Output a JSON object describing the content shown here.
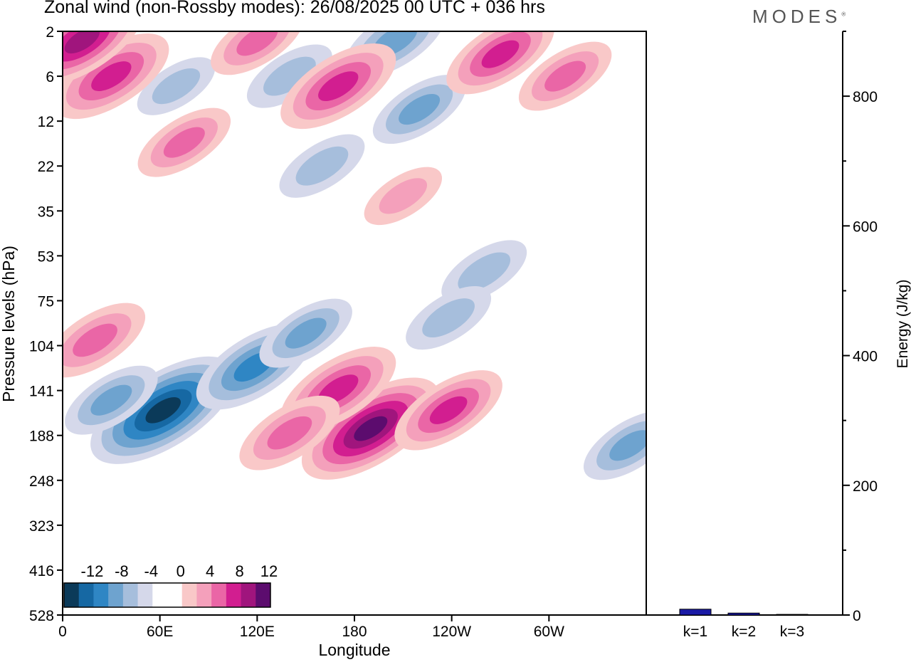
{
  "header": {
    "title": "Zonal wind (non-Rossby modes):  26/08/2025  00 UTC  + 036 hrs",
    "logo": "MODES"
  },
  "chart_data": [
    {
      "type": "heatmap",
      "title": "Zonal wind (non-Rossby modes)",
      "xlabel": "Longitude",
      "ylabel": "Pressure levels (hPa)",
      "x_ticks": [
        "0",
        "60E",
        "120E",
        "180",
        "120W",
        "60W"
      ],
      "y_ticks": [
        "2",
        "6",
        "12",
        "22",
        "35",
        "53",
        "75",
        "104",
        "141",
        "188",
        "248",
        "323",
        "416",
        "528"
      ],
      "colorbar": {
        "labels": [
          "-12",
          "-8",
          "-4",
          "0",
          "4",
          "8",
          "12"
        ],
        "levels": [
          -14,
          -12,
          -10,
          -8,
          -6,
          -4,
          -2,
          0,
          2,
          4,
          6,
          8,
          10,
          12,
          14
        ],
        "colors": [
          "#0b3a59",
          "#1668a3",
          "#2f86c4",
          "#6ea3cf",
          "#a6bedc",
          "#d5d8ea",
          "#ffffff",
          "#ffffff",
          "#f9c8c8",
          "#f4a0bb",
          "#ea66a6",
          "#d21e90",
          "#a0157d",
          "#5c0c6e"
        ]
      },
      "features": [
        {
          "kind": "negative",
          "lon": 62,
          "level": 160,
          "value": -13
        },
        {
          "kind": "negative",
          "lon": 30,
          "level": 150,
          "value": -6
        },
        {
          "kind": "negative",
          "lon": 118,
          "level": 120,
          "value": -9
        },
        {
          "kind": "negative",
          "lon": 150,
          "level": 95,
          "value": -6
        },
        {
          "kind": "negative",
          "lon": 260,
          "level": 60,
          "value": -5
        },
        {
          "kind": "negative",
          "lon": 238,
          "level": 85,
          "value": -5
        },
        {
          "kind": "negative",
          "lon": 350,
          "level": 200,
          "value": -6
        },
        {
          "kind": "negative",
          "lon": 220,
          "level": 10,
          "value": -6
        },
        {
          "kind": "negative",
          "lon": 205,
          "level": 2.5,
          "value": -7
        },
        {
          "kind": "negative",
          "lon": 70,
          "level": 7,
          "value": -4
        },
        {
          "kind": "negative",
          "lon": 140,
          "level": 6,
          "value": -5
        },
        {
          "kind": "negative",
          "lon": 160,
          "level": 22,
          "value": -5
        },
        {
          "kind": "positive",
          "lon": 190,
          "level": 180,
          "value": 12
        },
        {
          "kind": "positive",
          "lon": 170,
          "level": 140,
          "value": 9
        },
        {
          "kind": "positive",
          "lon": 140,
          "level": 185,
          "value": 7
        },
        {
          "kind": "positive",
          "lon": 238,
          "level": 160,
          "value": 8
        },
        {
          "kind": "positive",
          "lon": 20,
          "level": 100,
          "value": 7
        },
        {
          "kind": "positive",
          "lon": 170,
          "level": 7,
          "value": 9
        },
        {
          "kind": "positive",
          "lon": 30,
          "level": 6,
          "value": 9
        },
        {
          "kind": "positive",
          "lon": 12,
          "level": 2.5,
          "value": 10
        },
        {
          "kind": "positive",
          "lon": 270,
          "level": 3.5,
          "value": 8
        },
        {
          "kind": "positive",
          "lon": 75,
          "level": 16,
          "value": 6
        },
        {
          "kind": "positive",
          "lon": 210,
          "level": 30,
          "value": 4
        },
        {
          "kind": "positive",
          "lon": 310,
          "level": 6,
          "value": 6
        },
        {
          "kind": "positive",
          "lon": 120,
          "level": 2.5,
          "value": 6
        }
      ]
    },
    {
      "type": "bar",
      "ylabel": "Energy (J/kg)",
      "categories": [
        "k=1",
        "k=2",
        "k=3"
      ],
      "values": [
        9,
        3,
        1
      ],
      "ylim": [
        0,
        900
      ],
      "y_ticks": [
        "0",
        "200",
        "400",
        "600",
        "800"
      ],
      "color": "#1a1aa6"
    }
  ]
}
